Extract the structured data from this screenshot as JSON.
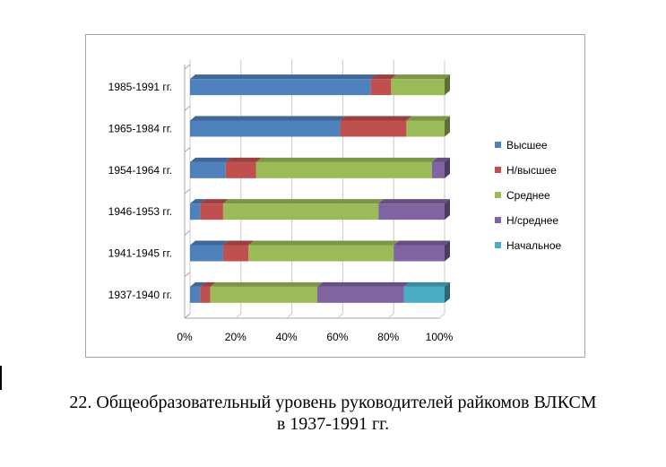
{
  "chart_data": {
    "type": "bar",
    "orientation": "horizontal",
    "stacked": "percent",
    "categories": [
      "1985-1991  гг.",
      "1965-1984  гг.",
      "1954-1964  гг.",
      "1946-1953  гг.",
      "1941-1945  гг.",
      "1937-1940  гг."
    ],
    "series": [
      {
        "name": "Высшее",
        "color": "#4f81bd",
        "values": [
          71,
          59,
          14,
          4,
          13,
          4
        ]
      },
      {
        "name": "Н/высшее",
        "color": "#c0504d",
        "values": [
          8,
          26,
          12,
          9,
          10,
          4
        ]
      },
      {
        "name": "Среднее",
        "color": "#9bbb59",
        "values": [
          21,
          15,
          69,
          61,
          57,
          42
        ]
      },
      {
        "name": "Н/среднее",
        "color": "#8064a2",
        "values": [
          0,
          0,
          5,
          26,
          20,
          34
        ]
      },
      {
        "name": "Начальное",
        "color": "#4bacc6",
        "values": [
          0,
          0,
          0,
          0,
          0,
          16
        ]
      }
    ],
    "xticks": [
      "0%",
      "20%",
      "40%",
      "60%",
      "80%",
      "100%"
    ],
    "xlim": [
      0,
      100
    ],
    "legend": "right",
    "grid": true
  },
  "caption": {
    "line1": "22. Общеобразовательный уровень руководителей райкомов ВЛКСМ",
    "line2": "в 1937-1991 гг."
  }
}
